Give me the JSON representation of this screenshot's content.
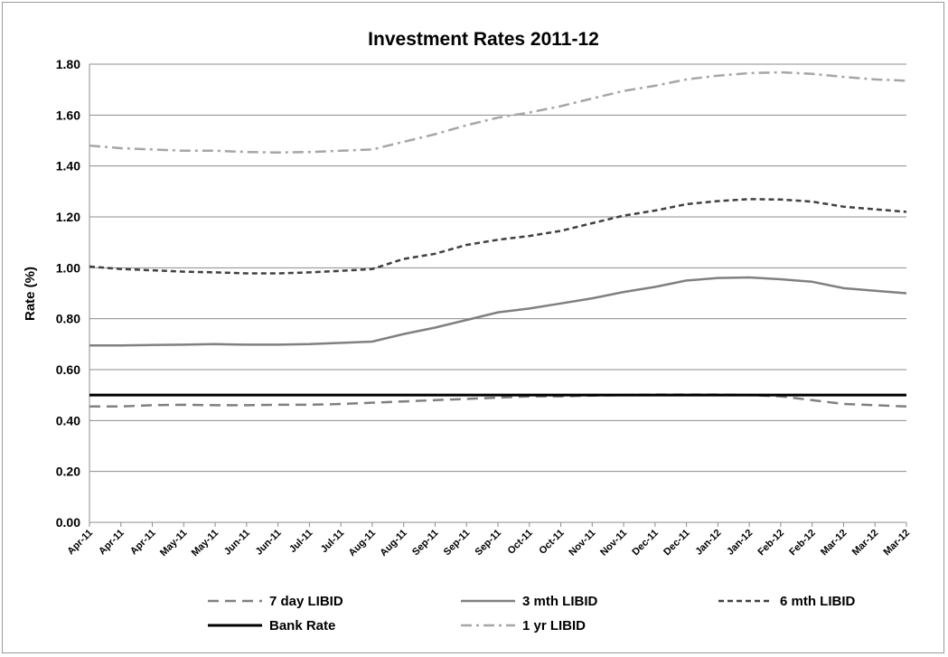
{
  "chart_data": {
    "type": "line",
    "title": "Investment Rates 2011-12",
    "xlabel": "",
    "ylabel": "Rate (%)",
    "ylim": [
      0,
      1.8
    ],
    "yticks": [
      "0.00",
      "0.20",
      "0.40",
      "0.60",
      "0.80",
      "1.00",
      "1.20",
      "1.40",
      "1.60",
      "1.80"
    ],
    "x_tick_labels": [
      "Apr-11",
      "Apr-11",
      "Apr-11",
      "May-11",
      "May-11",
      "Jun-11",
      "Jun-11",
      "Jul-11",
      "Jul-11",
      "Aug-11",
      "Aug-11",
      "Sep-11",
      "Sep-11",
      "Sep-11",
      "Oct-11",
      "Oct-11",
      "Nov-11",
      "Nov-11",
      "Dec-11",
      "Dec-11",
      "Jan-12",
      "Jan-12",
      "Feb-12",
      "Feb-12",
      "Mar-12",
      "Mar-12",
      "Mar-12"
    ],
    "grid": "horizontal",
    "legend_position": "bottom",
    "series": [
      {
        "name": "7 day LIBID",
        "style": "dash-long",
        "color": "#808080",
        "values": [
          0.455,
          0.455,
          0.46,
          0.462,
          0.46,
          0.46,
          0.462,
          0.462,
          0.465,
          0.47,
          0.475,
          0.48,
          0.485,
          0.49,
          0.495,
          0.495,
          0.498,
          0.5,
          0.502,
          0.502,
          0.502,
          0.5,
          0.495,
          0.48,
          0.465,
          0.46,
          0.455
        ]
      },
      {
        "name": "3 mth LIBID",
        "style": "solid",
        "color": "#808080",
        "values": [
          0.695,
          0.695,
          0.697,
          0.698,
          0.7,
          0.698,
          0.698,
          0.7,
          0.705,
          0.71,
          0.74,
          0.765,
          0.795,
          0.825,
          0.84,
          0.86,
          0.88,
          0.905,
          0.925,
          0.95,
          0.96,
          0.962,
          0.955,
          0.945,
          0.92,
          0.91,
          0.9
        ]
      },
      {
        "name": "6 mth LIBID",
        "style": "dash-short",
        "color": "#404040",
        "values": [
          1.005,
          0.995,
          0.99,
          0.985,
          0.982,
          0.978,
          0.978,
          0.982,
          0.988,
          0.995,
          1.035,
          1.055,
          1.09,
          1.11,
          1.125,
          1.145,
          1.175,
          1.205,
          1.225,
          1.25,
          1.262,
          1.27,
          1.268,
          1.26,
          1.24,
          1.23,
          1.22
        ]
      },
      {
        "name": "Bank Rate",
        "style": "solid-thick",
        "color": "#000000",
        "values": [
          0.5,
          0.5,
          0.5,
          0.5,
          0.5,
          0.5,
          0.5,
          0.5,
          0.5,
          0.5,
          0.5,
          0.5,
          0.5,
          0.5,
          0.5,
          0.5,
          0.5,
          0.5,
          0.5,
          0.5,
          0.5,
          0.5,
          0.5,
          0.5,
          0.5,
          0.5,
          0.5
        ]
      },
      {
        "name": "1 yr LIBID",
        "style": "dash-dot",
        "color": "#a6a6a6",
        "values": [
          1.48,
          1.47,
          1.465,
          1.46,
          1.46,
          1.455,
          1.453,
          1.455,
          1.46,
          1.465,
          1.495,
          1.525,
          1.56,
          1.59,
          1.61,
          1.635,
          1.665,
          1.695,
          1.715,
          1.74,
          1.755,
          1.765,
          1.768,
          1.762,
          1.75,
          1.74,
          1.735
        ]
      }
    ]
  }
}
